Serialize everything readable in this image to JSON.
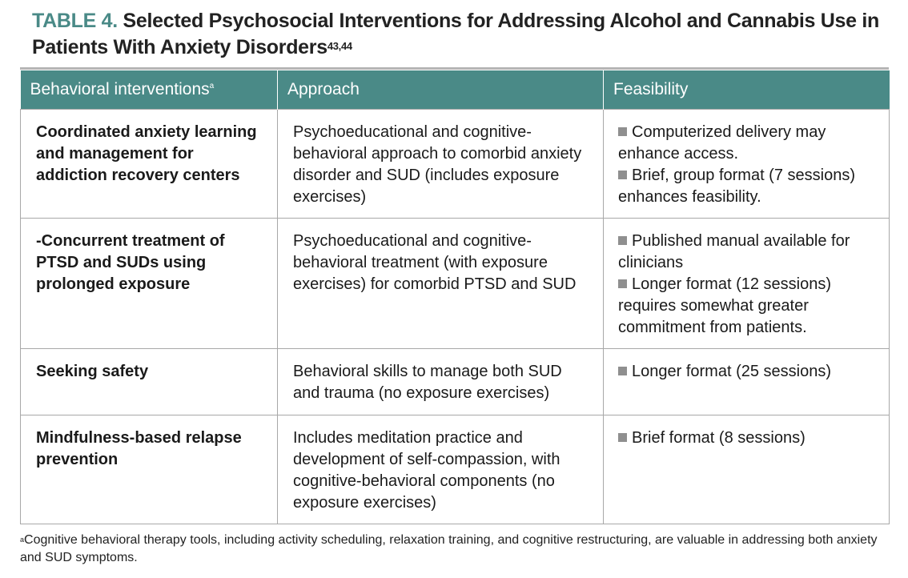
{
  "title": {
    "label": "TABLE 4.",
    "text": "Selected Psychosocial Interventions for Addressing Alcohol and Cannabis Use in Patients With Anxiety Disorders",
    "refs": "43,44"
  },
  "table": {
    "headers": {
      "col1": "Behavioral interventions",
      "col1_marker": "a",
      "col2": "Approach",
      "col3": "Feasibility"
    },
    "rows": [
      {
        "name": "Coordinated anxiety learning and management for addiction recovery centers",
        "approach": "Psychoeducational and cognitive-behavioral approach to comorbid anxiety disorder and SUD (includes exposure exercises)",
        "feasibility": [
          "Computerized delivery may enhance access.",
          "Brief, group format (7 sessions) enhances feasibility."
        ]
      },
      {
        "name": "-Concurrent treatment of PTSD and SUDs using prolonged exposure",
        "approach": "Psychoeducational and cognitive-behavioral treatment (with exposure exercises) for comorbid PTSD and SUD",
        "feasibility": [
          "Published manual available for clinicians",
          "Longer format (12 sessions) requires somewhat greater commitment from patients."
        ]
      },
      {
        "name": "Seeking safety",
        "approach": "Behavioral skills to manage both SUD and trauma (no exposure exercises)",
        "feasibility": [
          "Longer format (25 sessions)"
        ]
      },
      {
        "name": "Mindfulness-based relapse prevention",
        "approach": "Includes meditation practice and development of self-compassion, with cognitive-behavioral components (no exposure exercises)",
        "feasibility": [
          "Brief format (8 sessions)"
        ]
      }
    ]
  },
  "footnote": {
    "marker": "a",
    "text": "Cognitive behavioral therapy tools, including activity scheduling, relaxation training, and cognitive restructuring, are valuable in addressing both anxiety and SUD symptoms."
  },
  "colors": {
    "accent": "#4a8a87",
    "bullet": "#8f8f8f",
    "border": "#a8a8a8"
  }
}
